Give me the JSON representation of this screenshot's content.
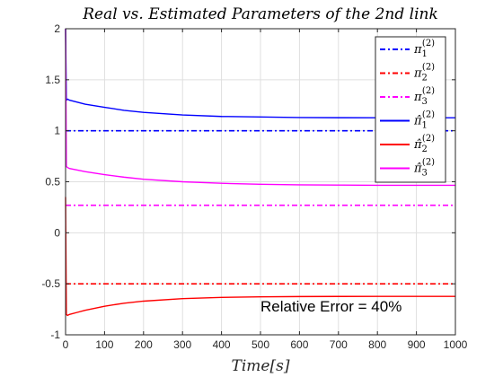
{
  "chart_data": {
    "type": "line",
    "title": "Real vs. Estimated Parameters of the 2nd link",
    "xlabel": "Time[s]",
    "ylabel": "",
    "xlim": [
      0,
      1000
    ],
    "ylim": [
      -1,
      2
    ],
    "xticks": [
      0,
      100,
      200,
      300,
      400,
      500,
      600,
      700,
      800,
      900,
      1000
    ],
    "yticks": [
      -1,
      -0.5,
      0,
      0.5,
      1,
      1.5,
      2
    ],
    "xtick_labels": [
      "0",
      "100",
      "200",
      "300",
      "400",
      "500",
      "600",
      "700",
      "800",
      "900",
      "1000"
    ],
    "ytick_labels": [
      "-1",
      "-0.5",
      "0",
      "0.5",
      "1",
      "1.5",
      "2"
    ],
    "grid": true,
    "legend_position": "top-right",
    "annotation": "Relative Error  = 40%",
    "series": [
      {
        "name": "π1(2)",
        "symbol": "π",
        "hat": false,
        "sub": "1",
        "sup": "(2)",
        "color": "#0000ff",
        "style": "dashdot",
        "x": [
          0,
          1000
        ],
        "y": [
          1.0,
          1.0
        ]
      },
      {
        "name": "π2(2)",
        "symbol": "π",
        "hat": false,
        "sub": "2",
        "sup": "(2)",
        "color": "#ff0000",
        "style": "dashdot",
        "x": [
          0,
          1000
        ],
        "y": [
          -0.5,
          -0.5
        ]
      },
      {
        "name": "π3(2)",
        "symbol": "π",
        "hat": false,
        "sub": "3",
        "sup": "(2)",
        "color": "#ff00ff",
        "style": "dashdot",
        "x": [
          0,
          1000
        ],
        "y": [
          0.27,
          0.27
        ]
      },
      {
        "name": "π̂1(2)",
        "symbol": "π̂",
        "hat": true,
        "sub": "1",
        "sup": "(2)",
        "color": "#0000ff",
        "style": "solid",
        "x": [
          0,
          2,
          5,
          10,
          30,
          50,
          100,
          150,
          200,
          300,
          400,
          500,
          600,
          700,
          800,
          900,
          1000
        ],
        "y": [
          2.0,
          1.3,
          1.31,
          1.3,
          1.28,
          1.26,
          1.23,
          1.2,
          1.18,
          1.155,
          1.14,
          1.135,
          1.13,
          1.128,
          1.127,
          1.127,
          1.127
        ]
      },
      {
        "name": "π̂2(2)",
        "symbol": "π̂",
        "hat": true,
        "sub": "2",
        "sup": "(2)",
        "color": "#ff0000",
        "style": "solid",
        "x": [
          0,
          2,
          5,
          10,
          30,
          50,
          100,
          150,
          200,
          300,
          400,
          500,
          600,
          700,
          800,
          900,
          1000
        ],
        "y": [
          0.35,
          -0.8,
          -0.81,
          -0.8,
          -0.78,
          -0.76,
          -0.72,
          -0.69,
          -0.67,
          -0.645,
          -0.633,
          -0.628,
          -0.625,
          -0.624,
          -0.623,
          -0.623,
          -0.623
        ]
      },
      {
        "name": "π̂3(2)",
        "symbol": "π̂",
        "hat": true,
        "sub": "3",
        "sup": "(2)",
        "color": "#ff00ff",
        "style": "solid",
        "x": [
          0,
          2,
          5,
          10,
          30,
          50,
          100,
          150,
          200,
          300,
          400,
          500,
          600,
          700,
          800,
          900,
          1000
        ],
        "y": [
          2.0,
          0.65,
          0.64,
          0.63,
          0.615,
          0.6,
          0.57,
          0.545,
          0.525,
          0.5,
          0.485,
          0.475,
          0.47,
          0.468,
          0.465,
          0.465,
          0.465
        ]
      }
    ]
  }
}
